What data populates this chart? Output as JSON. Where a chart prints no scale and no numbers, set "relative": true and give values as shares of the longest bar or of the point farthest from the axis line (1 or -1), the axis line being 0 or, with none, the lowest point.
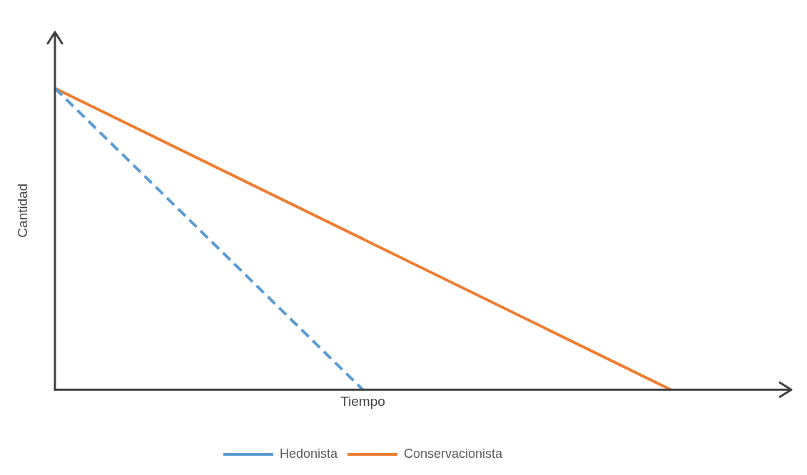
{
  "chart_data": {
    "type": "line",
    "relative": true,
    "xlabel": "Tiempo",
    "ylabel": "Cantidad",
    "legend": "bottom",
    "marker": "none",
    "grid": false,
    "tick_labels": false,
    "categories": [
      null,
      null,
      null,
      null,
      null
    ],
    "series": [
      {
        "name": "Hedonista",
        "color": "#5b9bd5",
        "line_style": "dashed",
        "values": [
          1,
          null,
          0,
          null,
          null
        ]
      },
      {
        "name": "Conservacionista",
        "color": "#ed7d31",
        "line_style": "solid",
        "values": [
          1,
          null,
          null,
          null,
          0
        ]
      }
    ]
  }
}
